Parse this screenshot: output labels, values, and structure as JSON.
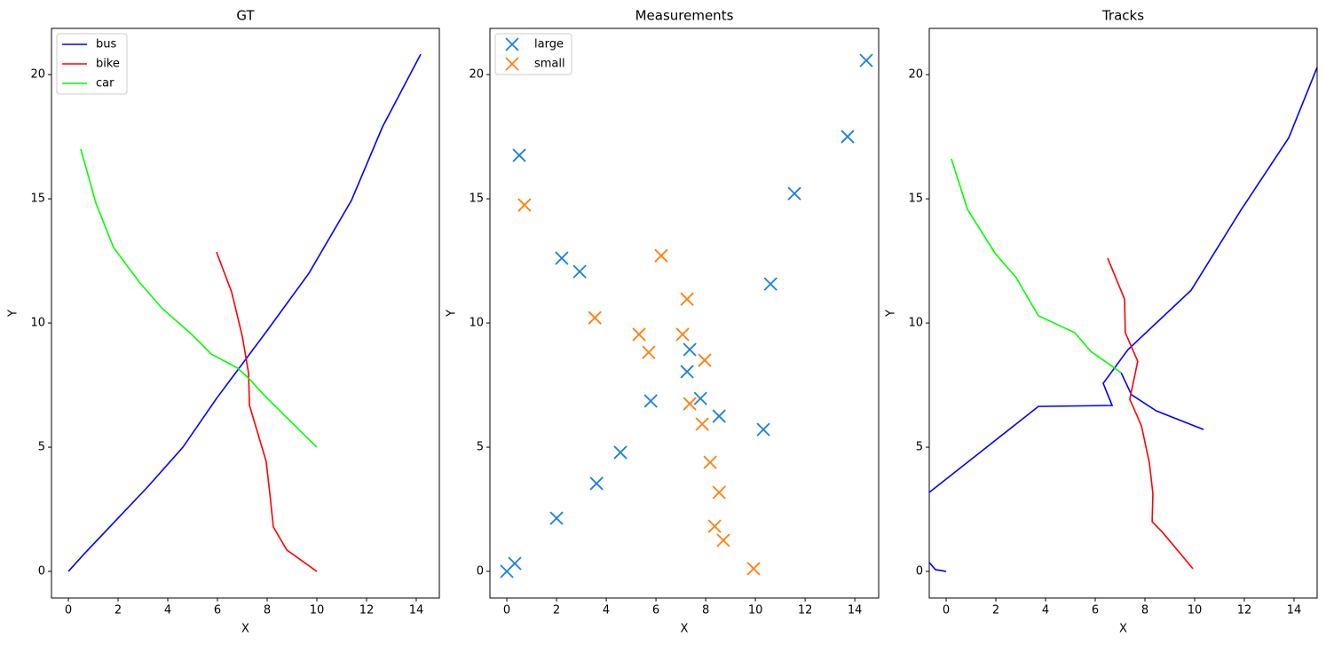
{
  "chart_data": [
    {
      "type": "line",
      "title": "GT",
      "xlabel": "X",
      "ylabel": "Y",
      "xlim": [
        -0.68,
        14.93
      ],
      "ylim": [
        -1.07,
        21.86
      ],
      "xticks": [
        0,
        2,
        4,
        6,
        8,
        10,
        12,
        14
      ],
      "yticks": [
        0,
        5,
        10,
        15,
        20
      ],
      "legend": "upper left",
      "series": [
        {
          "name": "bus",
          "color": "#0000ff",
          "x": [
            0,
            0.64,
            3.18,
            4.61,
            5.96,
            7.96,
            9.68,
            11.39,
            12.64,
            14.18
          ],
          "y": [
            0,
            0.71,
            3.39,
            5.0,
            6.96,
            9.64,
            12.0,
            14.93,
            17.89,
            20.82
          ]
        },
        {
          "name": "bike",
          "color": "#ff0000",
          "x": [
            5.96,
            6.57,
            7.0,
            7.25,
            7.29,
            7.96,
            8.11,
            8.25,
            8.79,
            10.0
          ],
          "y": [
            12.86,
            11.25,
            9.46,
            8.0,
            6.68,
            4.43,
            3.11,
            1.79,
            0.86,
            0
          ]
        },
        {
          "name": "car",
          "color": "#00ff00",
          "x": [
            0.5,
            1.11,
            1.82,
            2.86,
            3.79,
            4.89,
            5.75,
            6.82,
            7.32,
            7.93,
            10.0
          ],
          "y": [
            17.0,
            14.82,
            13.04,
            11.64,
            10.57,
            9.61,
            8.75,
            8.18,
            7.71,
            7.04,
            5.0
          ]
        }
      ]
    },
    {
      "type": "scatter",
      "title": "Measurements",
      "xlabel": "X",
      "ylabel": "Y",
      "xlim": [
        -0.68,
        14.96
      ],
      "ylim": [
        -1.07,
        21.86
      ],
      "xticks": [
        0,
        2,
        4,
        6,
        8,
        10,
        12,
        14
      ],
      "yticks": [
        0,
        5,
        10,
        15,
        20
      ],
      "legend": "upper left",
      "marker": "x",
      "series": [
        {
          "name": "large",
          "color": "#1a80e0",
          "x": [
            0.5,
            2.21,
            2.93,
            7.36,
            7.25,
            7.79,
            5.79,
            8.54,
            4.57,
            3.61,
            2.0,
            0.32,
            0,
            10.32,
            10.61,
            11.57,
            13.71,
            14.46
          ],
          "y": [
            16.75,
            12.61,
            12.07,
            8.93,
            8.04,
            6.96,
            6.86,
            6.25,
            4.79,
            3.54,
            2.14,
            0.32,
            0,
            5.71,
            11.57,
            15.21,
            17.5,
            20.57
          ]
        },
        {
          "name": "small",
          "color": "#ff7f0e",
          "x": [
            0.71,
            6.21,
            7.25,
            3.54,
            5.32,
            7.07,
            5.71,
            7.96,
            7.36,
            7.86,
            8.18,
            8.54,
            8.36,
            8.71,
            9.93
          ],
          "y": [
            14.75,
            12.71,
            10.96,
            10.21,
            9.54,
            9.54,
            8.82,
            8.5,
            6.75,
            5.93,
            4.39,
            3.18,
            1.82,
            1.25,
            0.11
          ]
        }
      ]
    },
    {
      "type": "line",
      "title": "Tracks",
      "xlabel": "X",
      "ylabel": "Y",
      "xlim": [
        -0.68,
        14.93
      ],
      "ylim": [
        -1.07,
        21.86
      ],
      "xticks": [
        0,
        2,
        4,
        6,
        8,
        10,
        12,
        14
      ],
      "yticks": [
        0,
        5,
        10,
        15,
        20
      ],
      "series": [
        {
          "color": "#0000ff",
          "x": [
            -0.68,
            3.71,
            6.68,
            6.32,
            7.32,
            9.86,
            11.86,
            13.79,
            14.93
          ],
          "y": [
            3.18,
            6.64,
            6.68,
            7.57,
            8.93,
            11.32,
            14.54,
            17.46,
            20.29
          ]
        },
        {
          "color": "#0000ff",
          "x": [
            7.04,
            7.46,
            8.46,
            10.36
          ],
          "y": [
            8.0,
            7.11,
            6.46,
            5.71
          ]
        },
        {
          "color": "#0000ff",
          "x": [
            -0.68,
            -0.43,
            0
          ],
          "y": [
            0.36,
            0.07,
            0
          ]
        },
        {
          "color": "#00ff00",
          "x": [
            0.21,
            0.86,
            1.96,
            2.82,
            3.71,
            5.18,
            5.82,
            7.04
          ],
          "y": [
            16.61,
            14.57,
            12.82,
            11.82,
            10.29,
            9.61,
            8.86,
            8.0
          ]
        },
        {
          "color": "#ff0000",
          "x": [
            6.5,
            7.18,
            7.21,
            7.71,
            7.39,
            7.86,
            8.18,
            8.32,
            8.29,
            8.71,
            9.93
          ],
          "y": [
            12.61,
            10.96,
            9.61,
            8.46,
            6.93,
            5.86,
            4.36,
            3.14,
            2.0,
            1.57,
            0.11
          ]
        }
      ]
    }
  ]
}
